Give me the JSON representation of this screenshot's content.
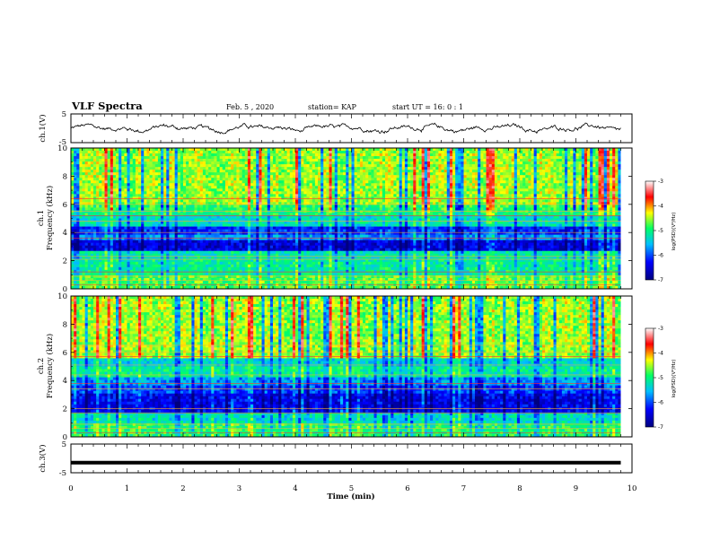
{
  "header": {
    "title": "VLF Spectra",
    "date": "Feb. 5 , 2020",
    "station": "station= KAP",
    "start": "start  UT =   16: 0  : 1"
  },
  "chart_data": [
    {
      "type": "line",
      "panel": "ch1-waveform",
      "ylabel": "ch.1(V)",
      "ylim": [
        -5,
        5
      ],
      "yticks": [
        "5",
        "-5"
      ],
      "xlim": [
        0,
        10
      ],
      "description_values": "noisy voltage trace oscillating roughly between -1.5 V and 1.5 V over 0–9.8 min",
      "series": [
        {
          "color": "#000000"
        }
      ]
    },
    {
      "type": "heatmap",
      "panel": "ch1-spectrogram",
      "ylabel_top": "ch.1",
      "ylabel": "Frequency (kHz)",
      "ylim": [
        0,
        10
      ],
      "yticks": [
        "0",
        "2",
        "4",
        "6",
        "8",
        "10"
      ],
      "xlim": [
        0,
        10
      ],
      "data_end_min": 9.8,
      "colorbar": {
        "label": "log(PSD)(V²/Hz)",
        "range": [
          -7,
          -3
        ],
        "ticks": [
          "-3",
          "-4",
          "-5",
          "-6",
          "-7"
        ],
        "colors": [
          "#00007f",
          "#0000ff",
          "#00bfff",
          "#00ff66",
          "#ffff00",
          "#ff0000",
          "#ffffff"
        ]
      },
      "bands_khz": [
        {
          "from": 0.0,
          "to": 1.0,
          "level": 0.55
        },
        {
          "from": 1.0,
          "to": 2.2,
          "level": 0.45
        },
        {
          "from": 2.2,
          "to": 2.6,
          "level": 0.42
        },
        {
          "from": 2.6,
          "to": 3.4,
          "level": 0.12
        },
        {
          "from": 3.4,
          "to": 3.8,
          "level": 0.3
        },
        {
          "from": 3.8,
          "to": 4.5,
          "level": 0.2
        },
        {
          "from": 4.5,
          "to": 5.2,
          "level": 0.4
        },
        {
          "from": 5.2,
          "to": 6.0,
          "level": 0.5
        },
        {
          "from": 6.0,
          "to": 10.0,
          "level": 0.6
        }
      ],
      "lines_khz": [
        0.3,
        0.6,
        0.9,
        1.2,
        2.1,
        2.3,
        3.6,
        4.0,
        4.8,
        5.2,
        5.5,
        6.0,
        6.4
      ]
    },
    {
      "type": "heatmap",
      "panel": "ch2-spectrogram",
      "ylabel_top": "ch.2",
      "ylabel": "Frequency (kHz)",
      "ylim": [
        0,
        10
      ],
      "yticks": [
        "0",
        "2",
        "4",
        "6",
        "8",
        "10"
      ],
      "xlim": [
        0,
        10
      ],
      "data_end_min": 9.8,
      "colorbar": {
        "label": "log(PSD)(V²/Hz)",
        "range": [
          -7,
          -3
        ],
        "ticks": [
          "-3",
          "-4",
          "-5",
          "-6",
          "-7"
        ],
        "colors": [
          "#00007f",
          "#0000ff",
          "#00bfff",
          "#00ff66",
          "#ffff00",
          "#ff0000",
          "#ffffff"
        ]
      },
      "bands_khz": [
        {
          "from": 0.0,
          "to": 1.0,
          "level": 0.5
        },
        {
          "from": 1.0,
          "to": 1.8,
          "level": 0.4
        },
        {
          "from": 1.8,
          "to": 3.0,
          "level": 0.14
        },
        {
          "from": 3.0,
          "to": 3.6,
          "level": 0.22
        },
        {
          "from": 3.6,
          "to": 4.2,
          "level": 0.3
        },
        {
          "from": 4.2,
          "to": 5.0,
          "level": 0.45
        },
        {
          "from": 5.0,
          "to": 5.6,
          "level": 0.38
        },
        {
          "from": 5.6,
          "to": 10.0,
          "level": 0.6
        }
      ],
      "lines_khz": [
        0.3,
        0.6,
        0.9,
        1.7,
        2.0,
        3.4,
        3.8,
        4.4,
        5.1,
        5.7,
        6.0,
        6.5
      ]
    },
    {
      "type": "line",
      "panel": "ch3-waveform",
      "ylabel": "ch.3(V)",
      "ylim": [
        -5,
        5
      ],
      "yticks": [
        "5",
        "-5"
      ],
      "xlim": [
        0,
        10
      ],
      "constant_value": -1.5,
      "series": [
        {
          "color": "#000000"
        }
      ]
    }
  ],
  "xaxis": {
    "label": "Time (min)",
    "ticks": [
      "0",
      "1",
      "2",
      "3",
      "4",
      "5",
      "6",
      "7",
      "8",
      "9",
      "10"
    ]
  }
}
